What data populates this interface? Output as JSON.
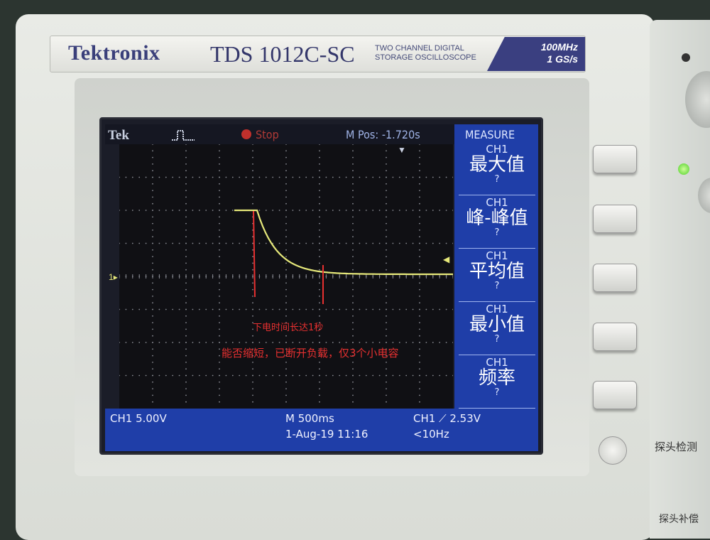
{
  "device": {
    "brand": "Tektronix",
    "model": "TDS 1012C-SC",
    "subtitle_line1": "TWO CHANNEL DIGITAL",
    "subtitle_line2": "STORAGE OSCILLOSCOPE",
    "bandwidth": "100MHz",
    "sample_rate": "1 GS/s",
    "side_label_1": "探头检测",
    "side_label_2": "探头补偿"
  },
  "screen": {
    "top": {
      "logo": "Tek",
      "trigger_icon": "pulse-icon",
      "run_state": "Stop",
      "m_pos": "M Pos: -1.720s",
      "menu_title": "MEASURE"
    },
    "measure": [
      {
        "ch": "CH1",
        "name": "最大值",
        "value": "?"
      },
      {
        "ch": "CH1",
        "name": "峰-峰值",
        "value": "?"
      },
      {
        "ch": "CH1",
        "name": "平均值",
        "value": "?"
      },
      {
        "ch": "CH1",
        "name": "最小值",
        "value": "?"
      },
      {
        "ch": "CH1",
        "name": "频率",
        "value": "?"
      }
    ],
    "bottom": {
      "ch_scale": "CH1  5.00V",
      "timebase": "M 500ms",
      "datetime": "1-Aug-19 11:16",
      "trigger": "CH1 ⟋ 2.53V",
      "frequency": "<10Hz"
    },
    "ground_marker": "1",
    "trace_color": "#e6e87a",
    "annotations": {
      "line1": "下电时间长达1秒",
      "line2": "能否缩短，已断开负载，仅3个小电容",
      "color": "#e83030"
    }
  }
}
